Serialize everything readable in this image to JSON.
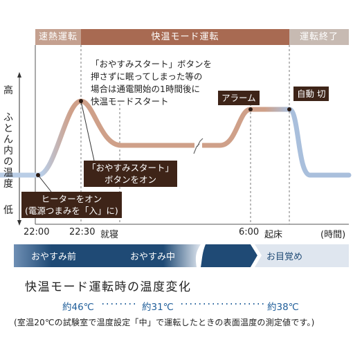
{
  "phases": {
    "rapid": "速熱運転",
    "keep": "快温モード運転",
    "end": "運転終了"
  },
  "yaxis": {
    "high": "高",
    "label": "ふとん内の温度",
    "low": "低"
  },
  "xaxis": {
    "t2200": "22:00",
    "t2230": "22:30",
    "sleep": "就寝",
    "t600": "6:00",
    "wake": "起床",
    "unit": "(時間)"
  },
  "note": {
    "line1": "「おやすみスタート」ボタンを",
    "line2": "押さずに眠ってしまった等の",
    "line3": "場合は通電開始の1時間後に",
    "line4": "快温モードスタート"
  },
  "callouts": {
    "oyasumi_line1": "「おやすみスタート」",
    "oyasumi_line2": "ボタンをオン",
    "heater_line1": "ヒーターをオン",
    "heater_line2": "(電源つまみを「入」に)",
    "alarm": "アラーム",
    "auto_off": "自動 切"
  },
  "bands": {
    "before": "おやすみ前",
    "during": "おやすみ中",
    "wake": "お目覚め"
  },
  "title": "快温モード運転時の温度変化",
  "temps": {
    "t1": "約46℃",
    "t2": "約31℃",
    "t3": "約38℃"
  },
  "footnote": "(室温20℃の試験室で温度設定「中」で運転したときの表面温度の測定値です。)",
  "colors": {
    "rapid": "#c4a08f",
    "keep": "#a86a52",
    "end": "#c7bab2",
    "band_dark": "#1f4a75",
    "curve_copper": "#c48a6e",
    "curve_blue": "#9cb6d8",
    "callout_bg": "#3e2418",
    "temp_text": "#1f5d99"
  }
}
